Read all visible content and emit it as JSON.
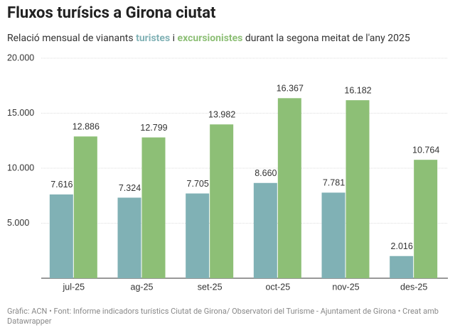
{
  "chart_data": {
    "type": "bar",
    "title": "Fluxos turísics a Girona ciutat",
    "subtitle": [
      "Relació mensual de vianants ",
      " i ",
      " durant la segona meitat de l'any 2025"
    ],
    "categories": [
      "jul-25",
      "ag-25",
      "set-25",
      "oct-25",
      "nov-25",
      "des-25"
    ],
    "series": [
      {
        "name": "turistes",
        "color": "#80b1b5",
        "values": [
          7616,
          7324,
          7705,
          8660,
          7781,
          2016
        ],
        "value_labels": [
          "7.616",
          "7.324",
          "7.705",
          "8.660",
          "7.781",
          "2.016"
        ]
      },
      {
        "name": "excursionistes",
        "color": "#8dbf76",
        "values": [
          12886,
          12799,
          13982,
          16367,
          16182,
          10764
        ],
        "value_labels": [
          "12.886",
          "12.799",
          "13.982",
          "16.367",
          "16.182",
          "10.764"
        ]
      }
    ],
    "ylim": [
      0,
      20000
    ],
    "yticks": [
      {
        "value": 5000,
        "label": "5.000"
      },
      {
        "value": 10000,
        "label": "10.000"
      },
      {
        "value": 15000,
        "label": "15.000"
      },
      {
        "value": 20000,
        "label": "20.000"
      }
    ],
    "grid": true,
    "footer": "Gràfic: ACN • Font: Informe indicadors turístics Ciutat de Girona/ Observatori del Turisme - Ajuntament de Girona • Creat amb Datawrapper"
  }
}
